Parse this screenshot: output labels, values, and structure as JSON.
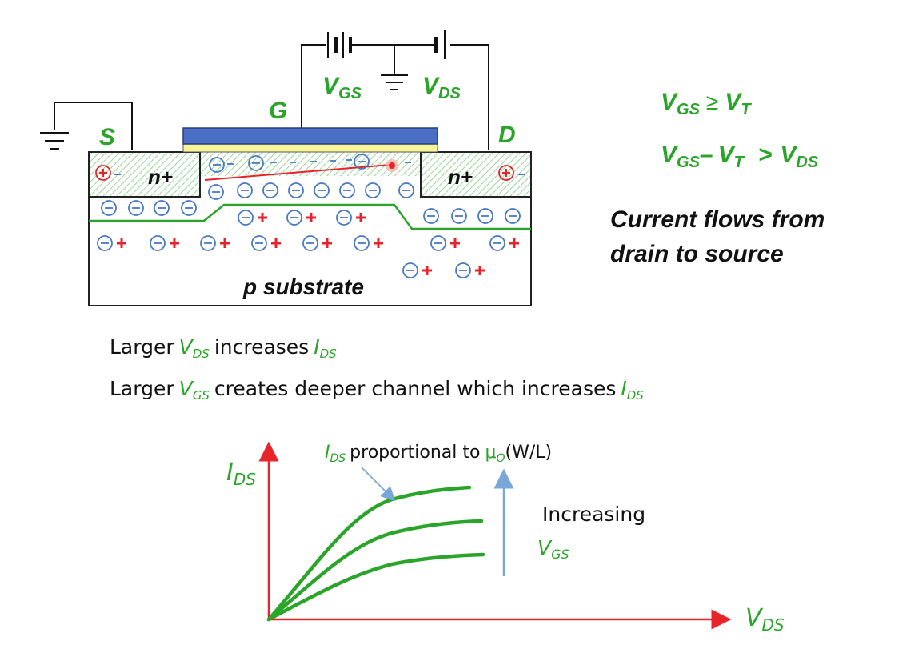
{
  "labels": {
    "S": "S",
    "G": "G",
    "D": "D",
    "V": "V",
    "I": "I",
    "GS": "GS",
    "DS": "DS",
    "T": "T",
    "nplus": "n+",
    "p_substrate": "p substrate",
    "gte": "≥",
    "minus": "–",
    "gt": ">"
  },
  "caption": {
    "current_line1": "Current flows from",
    "current_line2": "drain to source"
  },
  "notes": {
    "larger": "Larger",
    "increases": "increases",
    "creates": "creates deeper channel which increases"
  },
  "graph": {
    "annotation": "proportional to",
    "mu": "μ",
    "mu_sub": "O",
    "wl": "(W/L)",
    "increasing": "Increasing"
  },
  "colors": {
    "green": "#2aa52a",
    "red": "#e8232a",
    "blue_gate": "#4a6fc4",
    "oxide": "#fbf59a",
    "arrow_blue": "#7aa7d8"
  }
}
